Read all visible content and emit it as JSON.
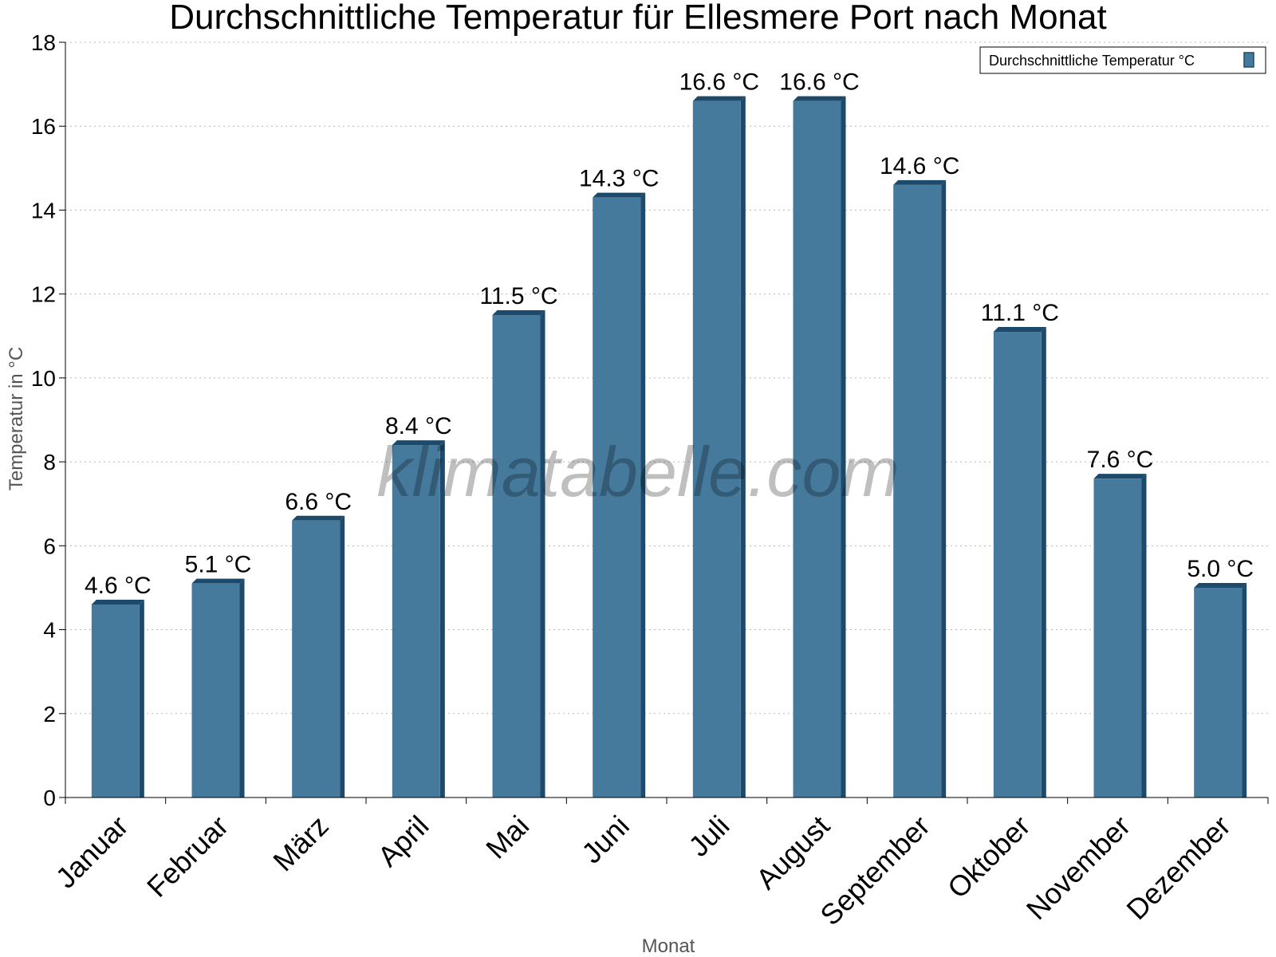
{
  "chart_data": {
    "type": "bar",
    "title": "Durchschnittliche Temperatur für Ellesmere Port nach Monat",
    "xlabel": "Monat",
    "ylabel": "Temperatur in °C",
    "ylim": [
      0,
      18
    ],
    "yticks": [
      0,
      2,
      4,
      6,
      8,
      10,
      12,
      14,
      16,
      18
    ],
    "grid": true,
    "legend_position": "top-right",
    "categories": [
      "Januar",
      "Februar",
      "März",
      "April",
      "Mai",
      "Juni",
      "Juli",
      "August",
      "September",
      "Oktober",
      "November",
      "Dezember"
    ],
    "series": [
      {
        "name": "Durchschnittliche Temperatur °C",
        "values": [
          4.6,
          5.1,
          6.6,
          8.4,
          11.5,
          14.3,
          16.6,
          16.6,
          14.6,
          11.1,
          7.6,
          5.0
        ],
        "labels": [
          "4.6 °C",
          "5.1 °C",
          "6.6 °C",
          "8.4 °C",
          "11.5 °C",
          "14.3 °C",
          "16.6 °C",
          "16.6 °C",
          "14.6 °C",
          "11.1 °C",
          "7.6 °C",
          "5.0 °C"
        ],
        "color": "#467a9c",
        "shade_color": "#1d4a6b"
      }
    ],
    "watermark": "klimatabelle.com"
  }
}
